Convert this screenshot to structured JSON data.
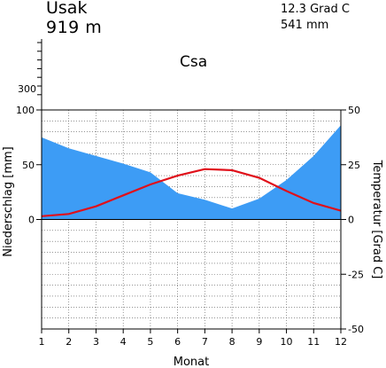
{
  "station": {
    "name": "Usak",
    "elevation": "919  m",
    "annual_temp": "12.3 Grad C",
    "annual_precip": "541 mm",
    "climate_class": "Csa"
  },
  "chart_data": {
    "type": "area",
    "xlabel": "Monat",
    "ylabel_left": "Niederschlag [mm]",
    "ylabel_right": "Temperatur [Grad C]",
    "categories": [
      "1",
      "2",
      "3",
      "4",
      "5",
      "6",
      "7",
      "8",
      "9",
      "10",
      "11",
      "12"
    ],
    "left_axis": {
      "range": [
        -100,
        100
      ],
      "ticks": [
        0,
        50,
        100
      ],
      "extra_tick_label": "300"
    },
    "right_axis": {
      "range": [
        -50,
        50
      ],
      "ticks": [
        -50,
        -25,
        0,
        25,
        50
      ]
    },
    "series": [
      {
        "name": "Niederschlag",
        "unit": "mm",
        "axis": "left",
        "color": "#3d9cf5",
        "values": [
          75,
          65,
          58,
          51,
          43,
          24,
          18,
          10,
          19,
          36,
          58,
          86
        ]
      },
      {
        "name": "Temperatur",
        "unit": "Grad C",
        "axis": "right",
        "color": "#e0101a",
        "values": [
          1.5,
          2.5,
          6,
          11,
          16,
          20,
          23,
          22.5,
          19,
          13,
          7.5,
          4
        ]
      }
    ],
    "grid": true
  }
}
